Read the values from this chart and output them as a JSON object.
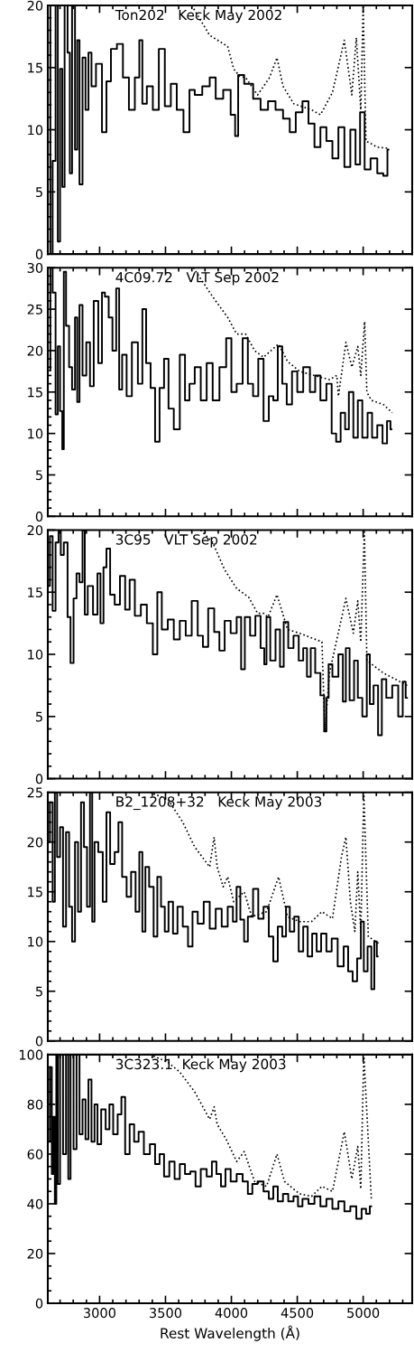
{
  "chart_data": [
    {
      "type": "step",
      "annotations": [
        "Ton202   Keck May 2002"
      ],
      "xlim": [
        2607,
        5372
      ],
      "xticks": [
        3000,
        3500,
        4000,
        4500,
        5000
      ],
      "ylim": [
        0,
        20
      ],
      "yticks": [
        0,
        5,
        10,
        15,
        20
      ],
      "tick_labels": "y",
      "series": [
        {
          "color": "#000000",
          "x": [
            2621,
            2632,
            2655,
            2677,
            2689,
            2711,
            2723,
            2746,
            2768,
            2780,
            2802,
            2825,
            2836,
            2859,
            2882,
            2904,
            2927,
            2950,
            2995,
            3041,
            3063,
            3109,
            3154,
            3200,
            3245,
            3290,
            3313,
            3336,
            3381,
            3427,
            3472,
            3518,
            3563,
            3608,
            3665,
            3699,
            3745,
            3813,
            3858,
            3904,
            3972,
            4017,
            4040,
            4063,
            4131,
            4199,
            4244,
            4312,
            4358,
            4426,
            4460,
            4517,
            4562,
            4608,
            4653,
            4698,
            4744,
            4789,
            4835,
            4880,
            4925,
            4959,
            4994,
            5028,
            5084,
            5130,
            5175,
            5193
          ],
          "values": [
            20,
            0,
            7.5,
            20,
            1,
            14.9,
            5.4,
            20,
            16.2,
            6.5,
            20,
            8.4,
            17.2,
            5.6,
            15.8,
            11.6,
            16.2,
            13.5,
            15.3,
            9.8,
            13.9,
            16.5,
            16.9,
            14.2,
            11.6,
            14.2,
            17.2,
            12.1,
            13.5,
            11.6,
            16.5,
            11.9,
            13.7,
            11.6,
            9.8,
            13.2,
            12.8,
            13.5,
            14.2,
            12.5,
            13.2,
            11.2,
            9.5,
            14.4,
            13.7,
            12.5,
            11.6,
            12.3,
            11.6,
            10.9,
            9.8,
            11.4,
            12.3,
            10.5,
            8.6,
            10.2,
            9.1,
            7.7,
            10.2,
            7.0,
            10.0,
            7.2,
            11.4,
            6.8,
            7.7,
            6.5,
            6.3,
            8.4
          ]
        },
        {
          "type": "line",
          "line_style": "dotted",
          "color": "#000000",
          "x": [
            3699,
            3835,
            3972,
            4017,
            4063,
            4108,
            4199,
            4290,
            4346,
            4392,
            4472,
            4608,
            4676,
            4767,
            4857,
            4914,
            4948,
            4982,
            5000,
            5021,
            5107,
            5198
          ],
          "values": [
            20,
            17.6,
            16.7,
            14.9,
            14.3,
            14.2,
            12.8,
            14.2,
            15.8,
            13.5,
            12.1,
            11.6,
            11.2,
            13.0,
            17.2,
            12.8,
            17.4,
            11.6,
            20,
            9.1,
            8.6,
            8.5
          ]
        }
      ]
    },
    {
      "type": "step",
      "annotations": [
        "4C09.72   VLT Sep 2002"
      ],
      "xlim": [
        2607,
        5372
      ],
      "xticks": [
        3000,
        3500,
        4000,
        4500,
        5000
      ],
      "ylim": [
        0,
        30
      ],
      "yticks": [
        0,
        5,
        10,
        15,
        20,
        25,
        30
      ],
      "tick_labels": "y",
      "series": [
        {
          "color": "#000000",
          "x": [
            2621,
            2632,
            2655,
            2677,
            2689,
            2711,
            2723,
            2734,
            2757,
            2780,
            2802,
            2825,
            2836,
            2859,
            2882,
            2916,
            2938,
            2973,
            3007,
            3029,
            3052,
            3086,
            3109,
            3143,
            3154,
            3188,
            3222,
            3268,
            3313,
            3336,
            3370,
            3404,
            3438,
            3472,
            3506,
            3540,
            3586,
            3631,
            3665,
            3699,
            3745,
            3790,
            3835,
            3881,
            3938,
            3983,
            4017,
            4063,
            4108,
            4142,
            4187,
            4221,
            4267,
            4301,
            4335,
            4369,
            4403,
            4437,
            4483,
            4517,
            4573,
            4619,
            4653,
            4698,
            4744,
            4778,
            4812,
            4846,
            4880,
            4903,
            4948,
            4971,
            5016,
            5051,
            5084,
            5130,
            5164,
            5198,
            5216
          ],
          "values": [
            17.6,
            30,
            27,
            12.3,
            20.5,
            12.7,
            8.1,
            29.5,
            23,
            18,
            15.3,
            24,
            13.8,
            25.5,
            17,
            21,
            15.7,
            26,
            18.5,
            27,
            26.5,
            24,
            20,
            27.5,
            15.3,
            19.5,
            14.5,
            21,
            16,
            25,
            18.5,
            15.5,
            9,
            15.5,
            19,
            13,
            10.5,
            19.5,
            14,
            16,
            18,
            14,
            18.5,
            14,
            18,
            21.5,
            15,
            16,
            21.5,
            16,
            14.5,
            19,
            11.5,
            14.5,
            14,
            20.5,
            16,
            13.5,
            17.5,
            15,
            18,
            15,
            17,
            14,
            16,
            10,
            9,
            12.5,
            10.5,
            15,
            9.5,
            14,
            9.5,
            12.5,
            9.5,
            11,
            8.8,
            11.5,
            10.5
          ]
        },
        {
          "type": "line",
          "line_style": "dotted",
          "color": "#000000",
          "x": [
            3711,
            3858,
            3972,
            4040,
            4108,
            4176,
            4244,
            4358,
            4426,
            4517,
            4630,
            4744,
            4800,
            4812,
            4869,
            4914,
            4959,
            4982,
            5011,
            5028,
            5062,
            5153,
            5221
          ],
          "values": [
            30,
            26.5,
            24,
            22,
            22,
            20,
            19.2,
            20.8,
            18.7,
            17.5,
            17,
            16.5,
            17,
            14.5,
            21,
            18,
            20.5,
            17,
            23.5,
            15,
            14,
            13.5,
            12.5
          ]
        }
      ]
    },
    {
      "type": "step",
      "annotations": [
        "3C95   VLT Sep 2002"
      ],
      "xlim": [
        2607,
        5372
      ],
      "xticks": [
        3000,
        3500,
        4000,
        4500,
        5000
      ],
      "ylim": [
        0,
        20
      ],
      "yticks": [
        0,
        5,
        10,
        15,
        20
      ],
      "tick_labels": "y",
      "series": [
        {
          "color": "#000000",
          "x": [
            2614,
            2632,
            2655,
            2677,
            2700,
            2711,
            2746,
            2768,
            2791,
            2814,
            2836,
            2859,
            2882,
            2893,
            2927,
            2973,
            2995,
            3018,
            3041,
            3063,
            3097,
            3132,
            3177,
            3211,
            3245,
            3290,
            3336,
            3381,
            3427,
            3449,
            3495,
            3540,
            3586,
            3631,
            3676,
            3722,
            3767,
            3801,
            3847,
            3892,
            3926,
            3972,
            4017,
            4063,
            4085,
            4119,
            4165,
            4199,
            4244,
            4255,
            4278,
            4312,
            4358,
            4380,
            4414,
            4449,
            4494,
            4528,
            4562,
            4585,
            4619,
            4653,
            4698,
            4710,
            4732,
            4744,
            4789,
            4835,
            4857,
            4880,
            4914,
            4948,
            4971,
            5016,
            5039,
            5062,
            5096,
            5130,
            5153,
            5198,
            5243,
            5289,
            5311,
            5334
          ],
          "values": [
            15.5,
            19.5,
            13.5,
            19,
            20,
            18,
            19,
            13,
            9.3,
            14.5,
            16.5,
            15.8,
            20,
            13.2,
            15.5,
            13.2,
            16.5,
            12.5,
            17,
            18.5,
            14.8,
            14,
            16.3,
            13.6,
            16,
            13.1,
            14,
            12.5,
            10,
            15,
            12,
            12.8,
            11.2,
            12.7,
            11.5,
            14.3,
            11.5,
            10.6,
            13.7,
            11.8,
            10.3,
            12.7,
            11.7,
            13,
            8.8,
            13,
            11.5,
            13.1,
            10.5,
            9.2,
            13,
            9.5,
            12,
            9,
            12.6,
            10.5,
            11.5,
            9.5,
            10.5,
            8.2,
            10.5,
            8.5,
            6.7,
            3.8,
            6.5,
            9.2,
            8.2,
            10,
            6.2,
            10.5,
            6.3,
            9.5,
            6.5,
            5,
            10,
            6,
            7.5,
            3.5,
            8,
            6.5,
            7.5,
            5,
            7.8,
            6.5
          ]
        },
        {
          "type": "line",
          "line_style": "dotted",
          "color": "#000000",
          "x": [
            3767,
            3858,
            3949,
            4040,
            4131,
            4199,
            4244,
            4278,
            4346,
            4426,
            4517,
            4687,
            4710,
            4744,
            4869,
            4925,
            4959,
            4982,
            5009,
            5028,
            5153,
            5334
          ],
          "values": [
            20,
            19,
            16.8,
            15.3,
            14.6,
            13.3,
            13.3,
            13,
            14.8,
            12,
            11.7,
            11,
            3.8,
            8.5,
            14.5,
            11.7,
            14.3,
            11,
            20,
            9.5,
            8.5,
            7.5
          ]
        }
      ]
    },
    {
      "type": "step",
      "annotations": [
        "B2_1208+32   Keck May 2003"
      ],
      "xlim": [
        2607,
        5372
      ],
      "xticks": [
        3000,
        3500,
        4000,
        4500,
        5000
      ],
      "ylim": [
        0,
        25
      ],
      "yticks": [
        0,
        5,
        10,
        15,
        20,
        25
      ],
      "tick_labels": "y",
      "series": [
        {
          "color": "#000000",
          "x": [
            2614,
            2632,
            2655,
            2666,
            2689,
            2711,
            2734,
            2757,
            2780,
            2802,
            2825,
            2848,
            2870,
            2893,
            2916,
            2938,
            2950,
            2973,
            3007,
            3041,
            3063,
            3097,
            3132,
            3154,
            3188,
            3222,
            3256,
            3290,
            3313,
            3336,
            3359,
            3393,
            3427,
            3449,
            3483,
            3506,
            3540,
            3574,
            3608,
            3654,
            3688,
            3722,
            3767,
            3813,
            3858,
            3904,
            3949,
            3995,
            4028,
            4051,
            4085,
            4108,
            4142,
            4187,
            4221,
            4267,
            4301,
            4335,
            4369,
            4403,
            4426,
            4460,
            4494,
            4528,
            4562,
            4596,
            4630,
            4664,
            4698,
            4744,
            4778,
            4835,
            4869,
            4903,
            4937,
            4971,
            4994,
            5016,
            5051,
            5073,
            5096,
            5111
          ],
          "values": [
            20,
            24,
            14,
            25,
            18.5,
            21.5,
            11.5,
            21,
            13.5,
            10,
            20,
            13,
            24,
            19.5,
            13.5,
            25,
            12,
            20,
            19,
            14,
            23,
            17.8,
            19,
            22,
            16.5,
            14.5,
            17,
            13,
            19,
            11,
            17.5,
            15.5,
            10.5,
            16.5,
            13.5,
            11,
            14,
            10.8,
            13.5,
            11.5,
            9.5,
            13,
            11.8,
            14,
            11.3,
            13.3,
            11.5,
            13.5,
            12,
            15.5,
            12.2,
            10,
            12.5,
            15.3,
            12.3,
            13.5,
            10.5,
            8,
            11.5,
            10.5,
            13.5,
            11,
            12.5,
            9,
            11.5,
            8.5,
            10.8,
            9,
            10.8,
            9,
            10.3,
            7.5,
            9.5,
            7,
            6,
            8.3,
            12,
            7,
            9.5,
            5.2,
            10,
            8.5
          ]
        },
        {
          "type": "line",
          "line_style": "dotted",
          "color": "#000000",
          "x": [
            3381,
            3518,
            3631,
            3722,
            3835,
            3869,
            3892,
            3938,
            3972,
            4017,
            4097,
            4154,
            4267,
            4358,
            4426,
            4517,
            4608,
            4687,
            4767,
            4835,
            4869,
            4903,
            4937,
            4959,
            4982,
            5005,
            5039,
            5118
          ],
          "values": [
            25,
            24.3,
            22,
            19.5,
            17.5,
            20.5,
            17.5,
            15.5,
            16.5,
            14,
            15,
            12.5,
            13,
            16.5,
            12.5,
            12,
            12,
            13,
            12.3,
            18.5,
            20.5,
            14,
            11,
            17,
            11,
            25,
            10.5,
            9.8
          ]
        }
      ]
    },
    {
      "type": "step",
      "annotations": [
        "3C323.1  Keck May 2003"
      ],
      "xlabel": "Rest Wavelength (Å)",
      "xlim": [
        2607,
        5372
      ],
      "xticks": [
        3000,
        3500,
        4000,
        4500,
        5000
      ],
      "ylim": [
        0,
        100
      ],
      "yticks": [
        0,
        20,
        40,
        60,
        80,
        100
      ],
      "series": [
        {
          "color": "#000000",
          "x": [
            2614,
            2632,
            2643,
            2655,
            2666,
            2677,
            2689,
            2711,
            2734,
            2757,
            2768,
            2791,
            2814,
            2836,
            2859,
            2882,
            2904,
            2927,
            2950,
            2973,
            2995,
            3029,
            3063,
            3086,
            3120,
            3154,
            3177,
            3211,
            3245,
            3279,
            3313,
            3359,
            3404,
            3438,
            3472,
            3506,
            3552,
            3586,
            3631,
            3665,
            3711,
            3745,
            3790,
            3835,
            3869,
            3904,
            3938,
            3972,
            4017,
            4063,
            4108,
            4142,
            4176,
            4221,
            4267,
            4301,
            4335,
            4369,
            4414,
            4449,
            4494,
            4517,
            4562,
            4608,
            4653,
            4698,
            4744,
            4789,
            4835,
            4880,
            4925,
            4971,
            5005,
            5039,
            5062
          ],
          "values": [
            65,
            95,
            52,
            75,
            40,
            100,
            48,
            100,
            60,
            100,
            50,
            100,
            62,
            100,
            68,
            82,
            66,
            90,
            65,
            80,
            64,
            78,
            70,
            80,
            68,
            76,
            83,
            60,
            72,
            65,
            69,
            60,
            64,
            56,
            60,
            51,
            57,
            50,
            56,
            52,
            53,
            47,
            54,
            51,
            57,
            52,
            47,
            54,
            49,
            52,
            49,
            44,
            48,
            49,
            45,
            42,
            47,
            41,
            44,
            41,
            43,
            39,
            42,
            40,
            43,
            39,
            42,
            38,
            41,
            37,
            39,
            34,
            38,
            36,
            39
          ]
        },
        {
          "type": "line",
          "line_style": "dotted",
          "color": "#000000",
          "x": [
            3381,
            3518,
            3608,
            3722,
            3835,
            3869,
            3892,
            3960,
            4040,
            4097,
            4176,
            4267,
            4346,
            4403,
            4517,
            4608,
            4687,
            4767,
            4857,
            4914,
            4959,
            4982,
            5005,
            5062
          ],
          "values": [
            100,
            97,
            93,
            85,
            74,
            79,
            72,
            66,
            57,
            61,
            49,
            47,
            60,
            49,
            44,
            43,
            47,
            45,
            69,
            50,
            63,
            46,
            100,
            42
          ]
        }
      ]
    }
  ]
}
